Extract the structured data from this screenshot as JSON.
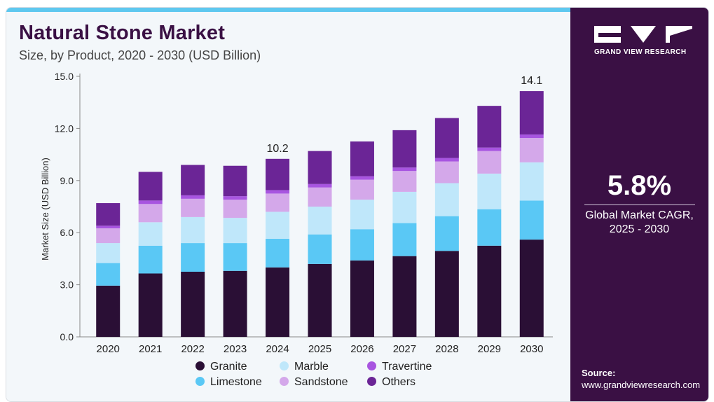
{
  "header": {
    "title": "Natural Stone Market",
    "subtitle": "Size, by Product, 2020 - 2030 (USD Billion)"
  },
  "sidebar": {
    "brand": "GRAND VIEW RESEARCH",
    "cagr_value": "5.8%",
    "cagr_label_line1": "Global Market CAGR,",
    "cagr_label_line2": "2025 - 2030",
    "source_label": "Source:",
    "source_url": "www.grandviewresearch.com"
  },
  "colors": {
    "accent_bar": "#5ec8ef",
    "sidebar_bg": "#3a1044",
    "Granite": "#2a0f35",
    "Limestone": "#5ac8f5",
    "Marble": "#bfe7fa",
    "Sandstone": "#d4a8ea",
    "Travertine": "#a855e0",
    "Others": "#6b2596"
  },
  "chart_data": {
    "type": "bar",
    "stacked": true,
    "ylabel": "Market Size (USD Billion)",
    "xlabel": "",
    "ylim": [
      0,
      15
    ],
    "yticks": [
      "0.0",
      "3.0",
      "6.0",
      "9.0",
      "12.0",
      "15.0"
    ],
    "categories": [
      "2020",
      "2021",
      "2022",
      "2023",
      "2024",
      "2025",
      "2026",
      "2027",
      "2028",
      "2029",
      "2030"
    ],
    "series": [
      {
        "name": "Granite",
        "values": [
          2.95,
          3.65,
          3.75,
          3.8,
          4.0,
          4.2,
          4.4,
          4.65,
          4.95,
          5.25,
          5.6
        ]
      },
      {
        "name": "Limestone",
        "values": [
          1.3,
          1.6,
          1.65,
          1.6,
          1.65,
          1.7,
          1.8,
          1.9,
          2.0,
          2.1,
          2.25
        ]
      },
      {
        "name": "Marble",
        "values": [
          1.15,
          1.35,
          1.5,
          1.45,
          1.55,
          1.6,
          1.7,
          1.8,
          1.9,
          2.05,
          2.2
        ]
      },
      {
        "name": "Sandstone",
        "values": [
          0.85,
          1.05,
          1.05,
          1.05,
          1.05,
          1.1,
          1.15,
          1.2,
          1.25,
          1.3,
          1.4
        ]
      },
      {
        "name": "Travertine",
        "values": [
          0.15,
          0.2,
          0.2,
          0.2,
          0.2,
          0.2,
          0.2,
          0.2,
          0.2,
          0.2,
          0.2
        ]
      },
      {
        "name": "Others",
        "values": [
          1.3,
          1.65,
          1.75,
          1.75,
          1.8,
          1.9,
          2.0,
          2.15,
          2.3,
          2.4,
          2.5
        ]
      }
    ],
    "annotations": [
      {
        "category": "2024",
        "label": "10.2"
      },
      {
        "category": "2030",
        "label": "14.1"
      }
    ],
    "legend": {
      "placement": "bottom",
      "entries": [
        "Granite",
        "Marble",
        "Travertine",
        "Limestone",
        "Sandstone",
        "Others"
      ]
    },
    "grid": false
  }
}
